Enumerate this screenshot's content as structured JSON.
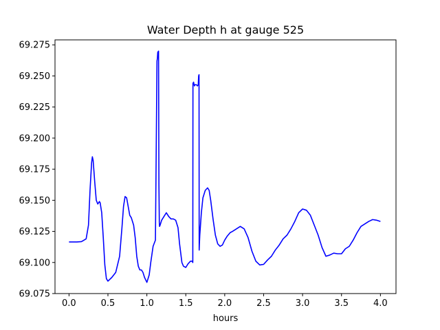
{
  "chart_data": {
    "type": "line",
    "title": "Water Depth h at gauge 525",
    "xlabel": "hours",
    "ylabel": "",
    "xlim": [
      -0.18,
      4.2
    ],
    "ylim": [
      69.075,
      69.279
    ],
    "x_ticks": [
      0.0,
      0.5,
      1.0,
      1.5,
      2.0,
      2.5,
      3.0,
      3.5,
      4.0
    ],
    "x_tick_labels": [
      "0.0",
      "0.5",
      "1.0",
      "1.5",
      "2.0",
      "2.5",
      "3.0",
      "3.5",
      "4.0"
    ],
    "y_ticks": [
      69.075,
      69.1,
      69.125,
      69.15,
      69.175,
      69.2,
      69.225,
      69.25,
      69.275
    ],
    "y_tick_labels": [
      "69.075",
      "69.100",
      "69.125",
      "69.150",
      "69.175",
      "69.200",
      "69.225",
      "69.250",
      "69.275"
    ],
    "grid": false,
    "series": [
      {
        "color": "#0000ff",
        "x": [
          0.0,
          0.1,
          0.16,
          0.22,
          0.25,
          0.27,
          0.29,
          0.3,
          0.31,
          0.33,
          0.35,
          0.37,
          0.39,
          0.4,
          0.42,
          0.44,
          0.46,
          0.48,
          0.5,
          0.55,
          0.6,
          0.65,
          0.68,
          0.7,
          0.72,
          0.74,
          0.76,
          0.78,
          0.8,
          0.83,
          0.85,
          0.87,
          0.89,
          0.91,
          0.93,
          0.95,
          0.97,
          1.0,
          1.03,
          1.05,
          1.08,
          1.11,
          1.13,
          1.135,
          1.14,
          1.15,
          1.155,
          1.16,
          1.163,
          1.17,
          1.19,
          1.22,
          1.25,
          1.28,
          1.31,
          1.34,
          1.37,
          1.4,
          1.42,
          1.45,
          1.47,
          1.5,
          1.53,
          1.56,
          1.58,
          1.59,
          1.592,
          1.6,
          1.61,
          1.62,
          1.635,
          1.65,
          1.66,
          1.665,
          1.67,
          1.672,
          1.675,
          1.68,
          1.7,
          1.72,
          1.75,
          1.78,
          1.8,
          1.82,
          1.85,
          1.88,
          1.91,
          1.94,
          1.97,
          2.0,
          2.03,
          2.07,
          2.1,
          2.15,
          2.2,
          2.25,
          2.3,
          2.35,
          2.4,
          2.45,
          2.5,
          2.55,
          2.6,
          2.65,
          2.7,
          2.75,
          2.8,
          2.85,
          2.9,
          2.95,
          3.0,
          3.05,
          3.1,
          3.15,
          3.2,
          3.25,
          3.3,
          3.35,
          3.4,
          3.45,
          3.5,
          3.55,
          3.6,
          3.65,
          3.7,
          3.75,
          3.8,
          3.85,
          3.9,
          3.95,
          4.0
        ],
        "y": [
          69.1165,
          69.1165,
          69.1168,
          69.119,
          69.13,
          69.158,
          69.18,
          69.185,
          69.182,
          69.165,
          69.15,
          69.147,
          69.149,
          69.148,
          69.14,
          69.12,
          69.098,
          69.087,
          69.085,
          69.088,
          69.092,
          69.105,
          69.128,
          69.145,
          69.153,
          69.152,
          69.145,
          69.138,
          69.136,
          69.13,
          69.12,
          69.105,
          69.097,
          69.094,
          69.094,
          69.092,
          69.088,
          69.084,
          69.09,
          69.1,
          69.113,
          69.118,
          69.262,
          69.264,
          69.269,
          69.27,
          69.162,
          69.132,
          69.129,
          69.13,
          69.134,
          69.137,
          69.14,
          69.137,
          69.135,
          69.135,
          69.134,
          69.128,
          69.115,
          69.1,
          69.097,
          69.096,
          69.099,
          69.101,
          69.101,
          69.1,
          69.244,
          69.245,
          69.242,
          69.243,
          69.243,
          69.242,
          69.243,
          69.25,
          69.251,
          69.11,
          69.115,
          69.122,
          69.14,
          69.152,
          69.158,
          69.16,
          69.158,
          69.15,
          69.135,
          69.122,
          69.115,
          69.113,
          69.114,
          69.118,
          69.121,
          69.124,
          69.125,
          69.127,
          69.129,
          69.127,
          69.12,
          69.109,
          69.101,
          69.098,
          69.0985,
          69.102,
          69.105,
          69.11,
          69.114,
          69.119,
          69.122,
          69.127,
          69.133,
          69.14,
          69.143,
          69.142,
          69.138,
          69.13,
          69.122,
          69.112,
          69.105,
          69.106,
          69.1075,
          69.107,
          69.107,
          69.111,
          69.113,
          69.118,
          69.124,
          69.129,
          69.131,
          69.133,
          69.1345,
          69.134,
          69.133
        ]
      }
    ]
  }
}
